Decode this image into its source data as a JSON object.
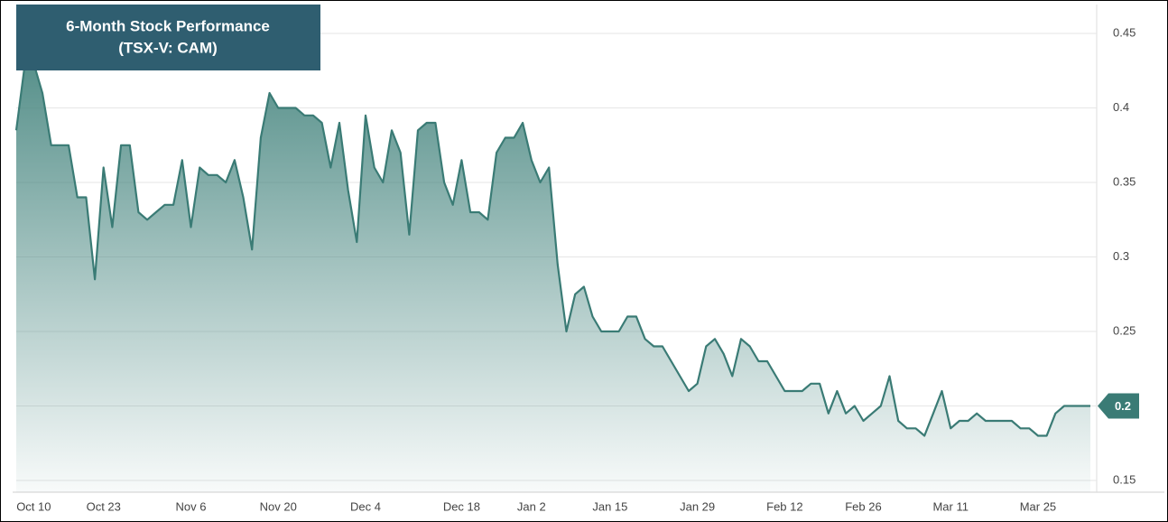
{
  "chart_data": {
    "type": "area",
    "title": "6-Month Stock Performance",
    "subtitle": "(TSX-V: CAM)",
    "categories": [
      null,
      null,
      "Oct 10",
      null,
      null,
      null,
      null,
      null,
      null,
      null,
      "Oct 23",
      null,
      null,
      null,
      null,
      null,
      null,
      null,
      null,
      null,
      "Nov 6",
      null,
      null,
      null,
      null,
      null,
      null,
      null,
      null,
      null,
      "Nov 20",
      null,
      null,
      null,
      null,
      null,
      null,
      null,
      null,
      null,
      "Dec 4",
      null,
      null,
      null,
      null,
      null,
      null,
      null,
      null,
      null,
      null,
      "Dec 18",
      null,
      null,
      null,
      null,
      null,
      null,
      null,
      "Jan 2",
      null,
      null,
      null,
      null,
      null,
      null,
      null,
      null,
      "Jan 15",
      null,
      null,
      null,
      null,
      null,
      null,
      null,
      null,
      null,
      "Jan 29",
      null,
      null,
      null,
      null,
      null,
      null,
      null,
      null,
      null,
      "Feb 12",
      null,
      null,
      null,
      null,
      null,
      null,
      null,
      null,
      "Feb 26",
      null,
      null,
      null,
      null,
      null,
      null,
      null,
      null,
      null,
      "Mar 11",
      null,
      null,
      null,
      null,
      null,
      null,
      null,
      null,
      null,
      "Mar 25",
      null,
      null,
      null,
      null,
      null,
      null
    ],
    "series": [
      {
        "color": "#3a7b75",
        "values": [
          0.385,
          0.43,
          0.43,
          0.41,
          0.375,
          0.375,
          0.375,
          0.34,
          0.34,
          0.285,
          0.36,
          0.32,
          0.375,
          0.375,
          0.33,
          0.325,
          0.33,
          0.335,
          0.335,
          0.365,
          0.32,
          0.36,
          0.355,
          0.355,
          0.35,
          0.365,
          0.34,
          0.305,
          0.38,
          0.41,
          0.4,
          0.4,
          0.4,
          0.395,
          0.395,
          0.39,
          0.36,
          0.39,
          0.345,
          0.31,
          0.395,
          0.36,
          0.35,
          0.385,
          0.37,
          0.315,
          0.385,
          0.39,
          0.39,
          0.35,
          0.335,
          0.365,
          0.33,
          0.33,
          0.325,
          0.37,
          0.38,
          0.38,
          0.39,
          0.365,
          0.35,
          0.36,
          0.295,
          0.25,
          0.275,
          0.28,
          0.26,
          0.25,
          0.25,
          0.25,
          0.26,
          0.26,
          0.245,
          0.24,
          0.24,
          0.23,
          0.22,
          0.21,
          0.215,
          0.24,
          0.245,
          0.235,
          0.22,
          0.245,
          0.24,
          0.23,
          0.23,
          0.22,
          0.21,
          0.21,
          0.21,
          0.215,
          0.215,
          0.195,
          0.21,
          0.195,
          0.2,
          0.19,
          0.195,
          0.2,
          0.22,
          0.19,
          0.185,
          0.185,
          0.18,
          0.195,
          0.21,
          0.185,
          0.19,
          0.19,
          0.195,
          0.19,
          0.19,
          0.19,
          0.19,
          0.185,
          0.185,
          0.18,
          0.18,
          0.195,
          0.2,
          0.2,
          0.2,
          0.2
        ]
      }
    ],
    "ylim": [
      0.15,
      0.45
    ],
    "yticks": [
      0.15,
      0.2,
      0.25,
      0.3,
      0.35,
      0.4,
      0.45
    ],
    "grid": true
  }
}
